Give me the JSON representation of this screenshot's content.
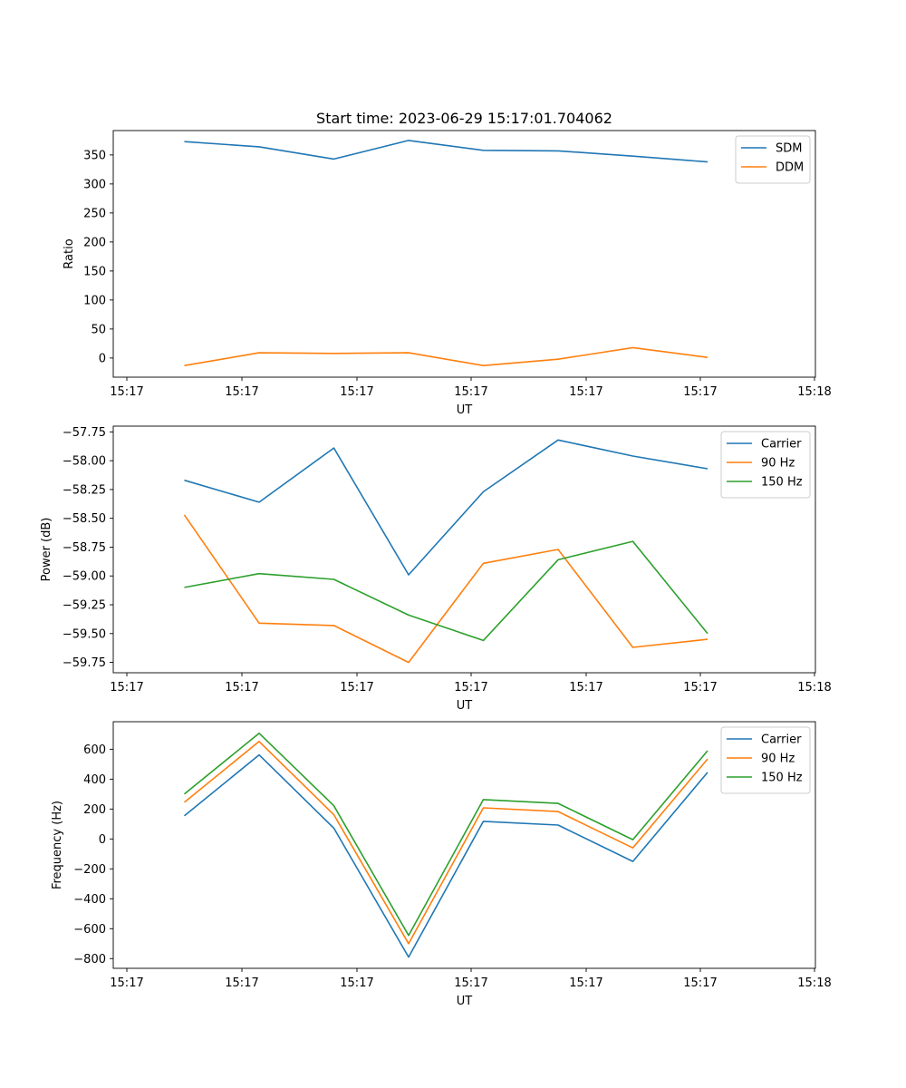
{
  "title": "Start time: 2023-06-29 15:17:01.704062",
  "colors": {
    "blue": "#1f77b4",
    "orange": "#ff7f0e",
    "green": "#2ca02c"
  },
  "chart_data": [
    {
      "type": "line",
      "title": "Start time: 2023-06-29 15:17:01.704062",
      "xlabel": "UT",
      "ylabel": "Ratio",
      "legend": "top-right",
      "grid": false,
      "x_ticklabels": [
        "15:17",
        "15:17",
        "15:17",
        "15:17",
        "15:17",
        "15:17",
        "15:18"
      ],
      "ylim": [
        -33,
        392
      ],
      "y_ticks": [
        0,
        50,
        100,
        150,
        200,
        250,
        300,
        350
      ],
      "y_ticklabels": [
        "0",
        "50",
        "100",
        "150",
        "200",
        "250",
        "300",
        "350"
      ],
      "series": [
        {
          "name": "SDM",
          "color": "#1f77b4",
          "values": [
            373,
            364,
            343,
            375,
            358,
            357,
            348,
            338
          ]
        },
        {
          "name": "DDM",
          "color": "#ff7f0e",
          "values": [
            -13,
            9,
            8,
            9,
            -13,
            -2,
            18,
            1
          ]
        }
      ]
    },
    {
      "type": "line",
      "xlabel": "UT",
      "ylabel": "Power (dB)",
      "legend": "top-right",
      "grid": false,
      "x_ticklabels": [
        "15:17",
        "15:17",
        "15:17",
        "15:17",
        "15:17",
        "15:17",
        "15:18"
      ],
      "ylim": [
        -59.84,
        -57.7
      ],
      "y_ticks": [
        -59.75,
        -59.5,
        -59.25,
        -59.0,
        -58.75,
        -58.5,
        -58.25,
        -58.0,
        -57.75
      ],
      "y_ticklabels": [
        "−59.75",
        "−59.50",
        "−59.25",
        "−59.00",
        "−58.75",
        "−58.50",
        "−58.25",
        "−58.00",
        "−57.75"
      ],
      "series": [
        {
          "name": "Carrier",
          "color": "#1f77b4",
          "values": [
            -58.17,
            -58.36,
            -57.89,
            -58.99,
            -58.27,
            -57.82,
            -57.96,
            -58.07
          ]
        },
        {
          "name": "90 Hz",
          "color": "#ff7f0e",
          "values": [
            -58.47,
            -59.41,
            -59.43,
            -59.75,
            -58.89,
            -58.77,
            -59.62,
            -59.55
          ]
        },
        {
          "name": "150 Hz",
          "color": "#2ca02c",
          "values": [
            -59.1,
            -58.98,
            -59.03,
            -59.34,
            -59.56,
            -58.86,
            -58.7,
            -59.5
          ]
        }
      ]
    },
    {
      "type": "line",
      "xlabel": "UT",
      "ylabel": "Frequency (Hz)",
      "legend": "top-right",
      "grid": false,
      "x_ticklabels": [
        "15:17",
        "15:17",
        "15:17",
        "15:17",
        "15:17",
        "15:17",
        "15:18"
      ],
      "ylim": [
        -865,
        784
      ],
      "y_ticks": [
        -800,
        -600,
        -400,
        -200,
        0,
        200,
        400,
        600
      ],
      "y_ticklabels": [
        "−800",
        "−600",
        "−400",
        "−200",
        "0",
        "200",
        "400",
        "600"
      ],
      "series": [
        {
          "name": "Carrier",
          "color": "#1f77b4",
          "values": [
            155,
            562,
            72,
            -790,
            118,
            93,
            -150,
            445
          ]
        },
        {
          "name": "90 Hz",
          "color": "#ff7f0e",
          "values": [
            245,
            652,
            162,
            -700,
            208,
            183,
            -60,
            535
          ]
        },
        {
          "name": "150 Hz",
          "color": "#2ca02c",
          "values": [
            300,
            707,
            222,
            -645,
            263,
            238,
            -5,
            590
          ]
        }
      ]
    }
  ]
}
